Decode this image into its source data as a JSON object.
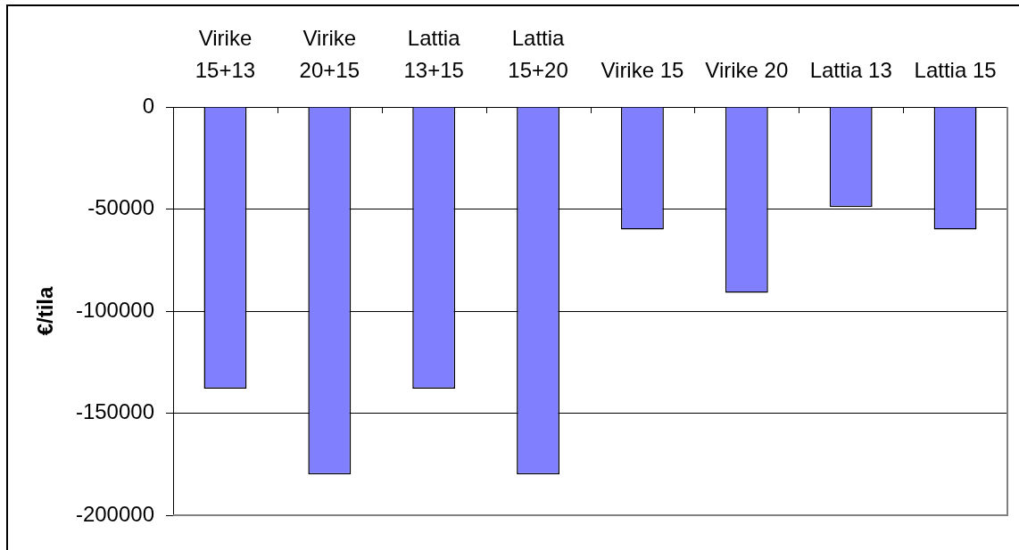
{
  "chart_data": {
    "type": "bar",
    "categories": [
      "Virike 15+13",
      "Virike 20+15",
      "Lattia 13+15",
      "Lattia 15+20",
      "Virike 15",
      "Virike 20",
      "Lattia 13",
      "Lattia 15"
    ],
    "values": [
      -138000,
      -180000,
      -138000,
      -180000,
      -60000,
      -91000,
      -49000,
      -60000
    ],
    "color": "#8080ff",
    "ylabel": "€/tila",
    "ylim": [
      -200000,
      0
    ],
    "yticks": [
      0,
      -50000,
      -100000,
      -150000,
      -200000
    ],
    "grid": "y"
  }
}
